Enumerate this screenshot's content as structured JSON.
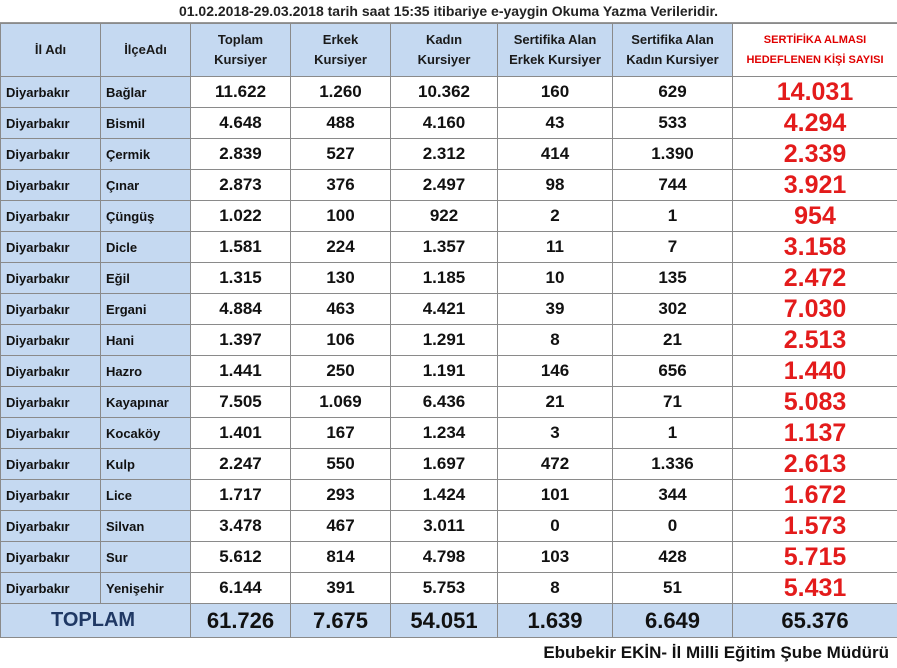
{
  "title": "01.02.2018-29.03.2018 tarih saat 15:35 itibariye e-yaygin Okuma Yazma Verileridir.",
  "table": {
    "headers": [
      [
        "İl Adı"
      ],
      [
        "İlçeAdı"
      ],
      [
        "Toplam",
        "Kursiyer"
      ],
      [
        "Erkek",
        "Kursiyer"
      ],
      [
        "Kadın",
        "Kursiyer"
      ],
      [
        "Sertifika Alan",
        "Erkek Kursiyer"
      ],
      [
        "Sertifika Alan",
        "Kadın Kursiyer"
      ],
      [
        "SERTİFİKA ALMASI",
        "HEDEFLENEN KİŞİ SAYISI"
      ]
    ],
    "rows": [
      [
        "Diyarbakır",
        "Bağlar",
        "11.622",
        "1.260",
        "10.362",
        "160",
        "629",
        "14.031"
      ],
      [
        "Diyarbakır",
        "Bismil",
        "4.648",
        "488",
        "4.160",
        "43",
        "533",
        "4.294"
      ],
      [
        "Diyarbakır",
        "Çermik",
        "2.839",
        "527",
        "2.312",
        "414",
        "1.390",
        "2.339"
      ],
      [
        "Diyarbakır",
        "Çınar",
        "2.873",
        "376",
        "2.497",
        "98",
        "744",
        "3.921"
      ],
      [
        "Diyarbakır",
        "Çüngüş",
        "1.022",
        "100",
        "922",
        "2",
        "1",
        "954"
      ],
      [
        "Diyarbakır",
        "Dicle",
        "1.581",
        "224",
        "1.357",
        "11",
        "7",
        "3.158"
      ],
      [
        "Diyarbakır",
        "Eğil",
        "1.315",
        "130",
        "1.185",
        "10",
        "135",
        "2.472"
      ],
      [
        "Diyarbakır",
        "Ergani",
        "4.884",
        "463",
        "4.421",
        "39",
        "302",
        "7.030"
      ],
      [
        "Diyarbakır",
        "Hani",
        "1.397",
        "106",
        "1.291",
        "8",
        "21",
        "2.513"
      ],
      [
        "Diyarbakır",
        "Hazro",
        "1.441",
        "250",
        "1.191",
        "146",
        "656",
        "1.440"
      ],
      [
        "Diyarbakır",
        "Kayapınar",
        "7.505",
        "1.069",
        "6.436",
        "21",
        "71",
        "5.083"
      ],
      [
        "Diyarbakır",
        "Kocaköy",
        "1.401",
        "167",
        "1.234",
        "3",
        "1",
        "1.137"
      ],
      [
        "Diyarbakır",
        "Kulp",
        "2.247",
        "550",
        "1.697",
        "472",
        "1.336",
        "2.613"
      ],
      [
        "Diyarbakır",
        "Lice",
        "1.717",
        "293",
        "1.424",
        "101",
        "344",
        "1.672"
      ],
      [
        "Diyarbakır",
        "Silvan",
        "3.478",
        "467",
        "3.011",
        "0",
        "0",
        "1.573"
      ],
      [
        "Diyarbakır",
        "Sur",
        "5.612",
        "814",
        "4.798",
        "103",
        "428",
        "5.715"
      ],
      [
        "Diyarbakır",
        "Yenişehir",
        "6.144",
        "391",
        "5.753",
        "8",
        "51",
        "5.431"
      ]
    ],
    "total": [
      "TOPLAM",
      "61.726",
      "7.675",
      "54.051",
      "1.639",
      "6.649",
      "65.376"
    ]
  },
  "footer": "Ebubekir EKİN- İl Milli Eğitim Şube Müdürü"
}
